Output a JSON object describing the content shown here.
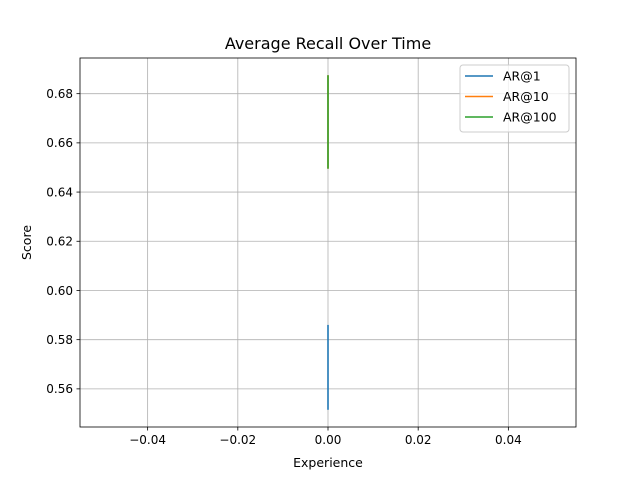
{
  "chart_data": {
    "type": "line",
    "title": "Average Recall Over Time",
    "xlabel": "Experience",
    "ylabel": "Score",
    "xlim": [
      -0.055,
      0.055
    ],
    "ylim": [
      0.5445,
      0.6945
    ],
    "xticks": [
      -0.04,
      -0.02,
      0.0,
      0.02,
      0.04
    ],
    "xtick_labels": [
      "−0.04",
      "−0.02",
      "0.00",
      "0.02",
      "0.04"
    ],
    "yticks": [
      0.56,
      0.58,
      0.6,
      0.62,
      0.64,
      0.66,
      0.68
    ],
    "ytick_labels": [
      "0.56",
      "0.58",
      "0.60",
      "0.62",
      "0.64",
      "0.66",
      "0.68"
    ],
    "grid": true,
    "legend_position": "top-right",
    "series": [
      {
        "name": "AR@1",
        "color": "#1f77b4",
        "x": [
          0,
          0
        ],
        "y": [
          0.5515,
          0.586
        ]
      },
      {
        "name": "AR@10",
        "color": "#ff7f0e",
        "x": [
          0,
          0
        ],
        "y": [
          0.6495,
          0.6875
        ]
      },
      {
        "name": "AR@100",
        "color": "#2ca02c",
        "x": [
          0,
          0
        ],
        "y": [
          0.6495,
          0.6875
        ]
      }
    ]
  }
}
